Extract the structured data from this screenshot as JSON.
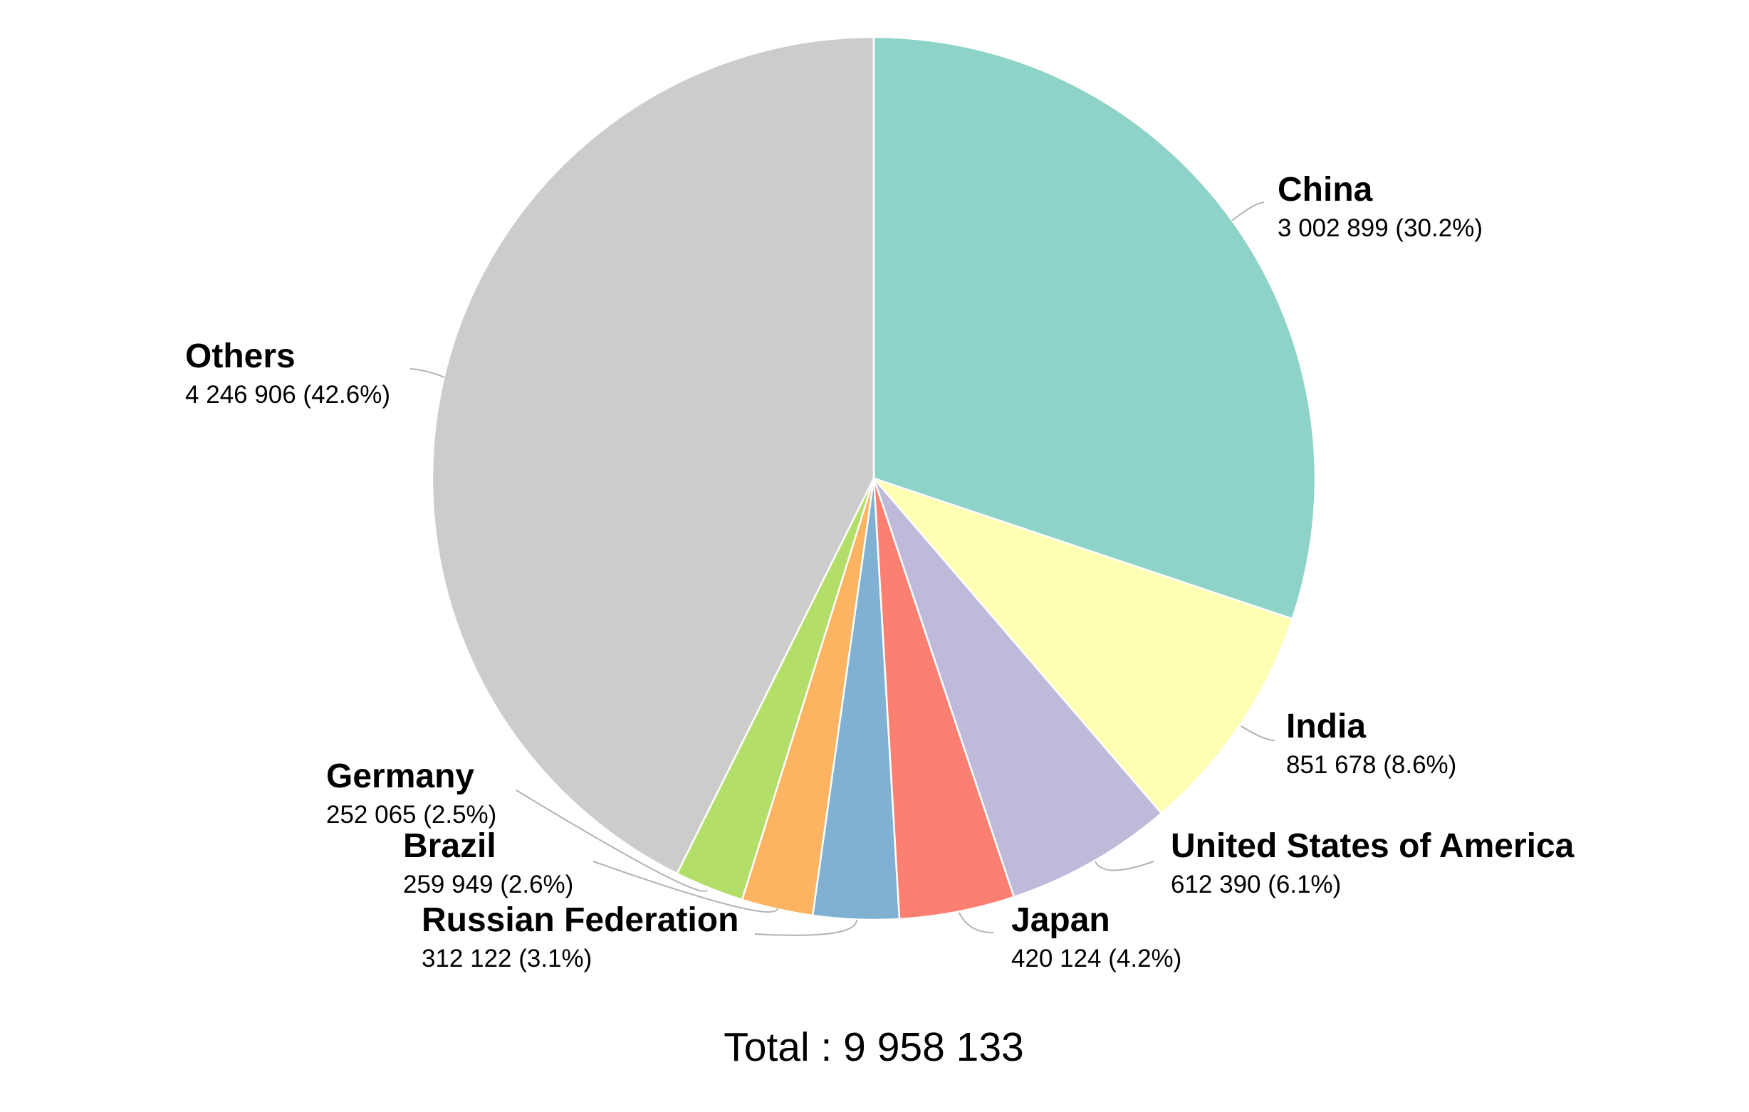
{
  "chart_data": {
    "type": "pie",
    "start_angle": "12 o'clock, clockwise",
    "total_label": "Total : 9 958 133",
    "slices": [
      {
        "name": "China",
        "value": 3002899,
        "value_label": "3 002 899 (30.2%)",
        "percent": 30.2,
        "color": "#8dd3c7"
      },
      {
        "name": "India",
        "value": 851678,
        "value_label": "851 678 (8.6%)",
        "percent": 8.6,
        "color": "#ffffb3"
      },
      {
        "name": "United States of America",
        "value": 612390,
        "value_label": "612 390 (6.1%)",
        "percent": 6.1,
        "color": "#bebada"
      },
      {
        "name": "Japan",
        "value": 420124,
        "value_label": "420 124 (4.2%)",
        "percent": 4.2,
        "color": "#fb8072"
      },
      {
        "name": "Russian Federation",
        "value": 312122,
        "value_label": "312 122 (3.1%)",
        "percent": 3.1,
        "color": "#80b1d3"
      },
      {
        "name": "Brazil",
        "value": 259949,
        "value_label": "259 949 (2.6%)",
        "percent": 2.6,
        "color": "#fdb462"
      },
      {
        "name": "Germany",
        "value": 252065,
        "value_label": "252 065 (2.5%)",
        "percent": 2.5,
        "color": "#b3de69"
      },
      {
        "name": "Others",
        "value": 4246906,
        "value_label": "4 246 906 (42.6%)",
        "percent": 42.6,
        "color": "#cccccc"
      }
    ]
  }
}
